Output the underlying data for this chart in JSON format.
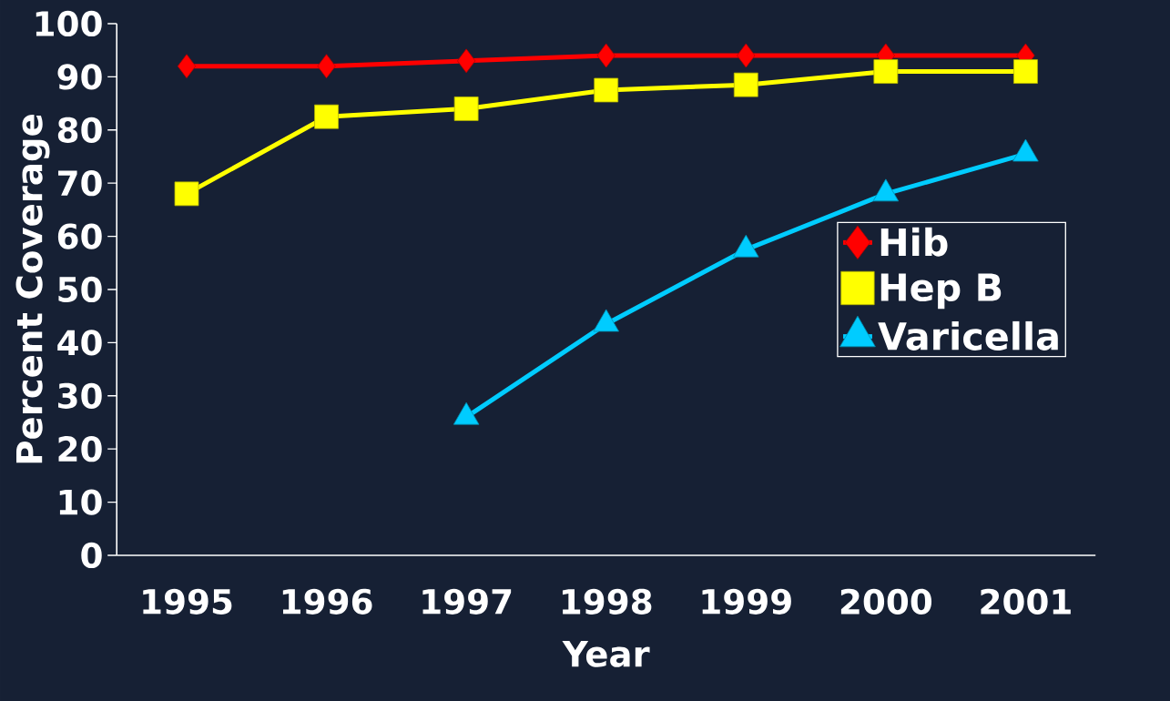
{
  "chart_data": {
    "type": "line",
    "xlabel": "Year",
    "ylabel": "Percent Coverage",
    "categories": [
      "1995",
      "1996",
      "1997",
      "1998",
      "1999",
      "2000",
      "2001"
    ],
    "series": [
      {
        "name": "Hib",
        "color": "#ff0000",
        "marker": "diamond",
        "values": [
          92,
          92,
          93,
          94,
          94,
          94,
          94
        ]
      },
      {
        "name": "Hep B",
        "color": "#ffff00",
        "marker": "square",
        "values": [
          68,
          82.5,
          84,
          87.5,
          88.5,
          91,
          91
        ]
      },
      {
        "name": "Varicella",
        "color": "#00ccff",
        "marker": "triangle",
        "values": [
          null,
          null,
          26,
          43.5,
          57.5,
          68,
          75.5
        ]
      }
    ],
    "ylim": [
      0,
      100
    ],
    "yticks": [
      0,
      10,
      20,
      30,
      40,
      50,
      60,
      70,
      80,
      90,
      100
    ],
    "grid": false,
    "legend": "right",
    "line_style": "solid"
  }
}
